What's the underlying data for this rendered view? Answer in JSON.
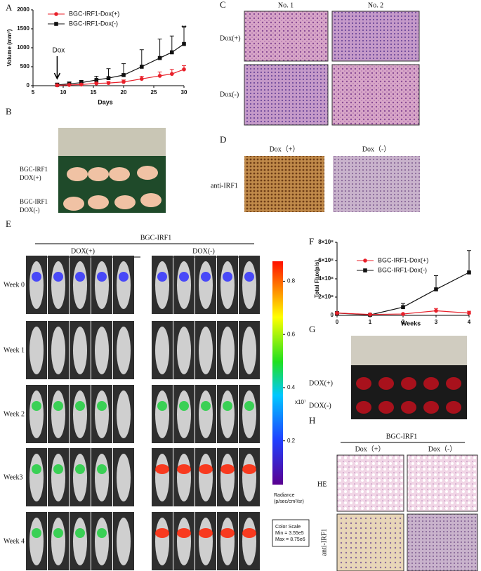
{
  "chart_data": [
    {
      "type": "line",
      "x_label": "Days",
      "y_label": "Volume (mm³)",
      "x": [
        9,
        11,
        13,
        15.5,
        17.5,
        20,
        23,
        26,
        28,
        30
      ],
      "series": [
        {
          "name": "BGC-IRF1-Dox(+)",
          "color": "#e8202a",
          "marker": "circle",
          "values": [
            10,
            20,
            30,
            60,
            70,
            100,
            180,
            260,
            310,
            430
          ],
          "errors": [
            20,
            20,
            20,
            30,
            40,
            50,
            70,
            100,
            120,
            100
          ]
        },
        {
          "name": "BGC-IRF1-Dox(-)",
          "color": "#111111",
          "marker": "square",
          "values": [
            20,
            50,
            80,
            150,
            200,
            280,
            500,
            730,
            880,
            1100
          ],
          "errors": [
            50,
            50,
            60,
            100,
            250,
            300,
            450,
            500,
            430,
            450
          ]
        }
      ],
      "xlim": [
        5,
        30
      ],
      "xticks": [
        5,
        10,
        15,
        20,
        25,
        30
      ],
      "ylim": [
        0,
        2000
      ],
      "yticks": [
        0,
        500,
        1000,
        1500,
        2000
      ],
      "annotations": [
        "Dox",
        "**"
      ],
      "legend": "upper left"
    },
    {
      "type": "line",
      "x_label": "Weeks",
      "y_label": "Total Flux(p/s)",
      "x": [
        0,
        1,
        2,
        3,
        4
      ],
      "series": [
        {
          "name": "BGC-IRF1-Dox(+)",
          "color": "#e8202a",
          "marker": "circle",
          "values": [
            25000000,
            10000000,
            15000000,
            50000000,
            25000000
          ],
          "errors": [
            0,
            0,
            0,
            25000000,
            20000000
          ]
        },
        {
          "name": "BGC-IRF1-Dox(-)",
          "color": "#111111",
          "marker": "square",
          "values": [
            25000000,
            5000000,
            90000000,
            285000000,
            470000000
          ],
          "errors": [
            0,
            0,
            40000000,
            150000000,
            240000000
          ]
        }
      ],
      "xlim": [
        0,
        4
      ],
      "xticks": [
        0,
        1,
        2,
        3,
        4
      ],
      "ylim": [
        0,
        800000000
      ],
      "yticks": [
        0,
        {
          "value": 200000000,
          "label": "2×10⁸"
        },
        {
          "value": 400000000,
          "label": "4×10⁸"
        },
        {
          "value": 600000000,
          "label": "6×10⁸"
        },
        {
          "value": 800000000,
          "label": "8×10⁸"
        }
      ],
      "legend": "upper left"
    }
  ],
  "panels": [
    "A",
    "B",
    "C",
    "D",
    "E",
    "F",
    "G",
    "H"
  ],
  "panel_b": {
    "rows": [
      [
        "BGC-IRF1",
        "DOX(+)"
      ],
      [
        "BGC-IRF1",
        "DOX(-)"
      ]
    ]
  },
  "panel_c": {
    "columns": [
      "No. 1",
      "No. 2"
    ],
    "rows": [
      "Dox(+)",
      "Dox(-)"
    ]
  },
  "panel_d": {
    "columns": [
      "Dox（+）",
      "Dox（-）"
    ],
    "row": "anti-IRF1"
  },
  "panel_e": {
    "title": "BGC-IRF1",
    "groups": [
      "DOX(+)",
      "DOX(-)"
    ],
    "rows": [
      "Week 0",
      "Week 1",
      "Week 2",
      "Week3",
      "Week 4"
    ],
    "colorbar": {
      "lim": [
        0.0355,
        0.875
      ],
      "ticks": [
        0.2,
        0.4,
        0.6,
        0.8
      ],
      "unit": "x10⁷",
      "label": [
        "Radiance",
        "(p/sec/cm²/sr)"
      ]
    },
    "scale_box": [
      "Color Scale",
      "Min = 3.55e5",
      "Max = 8.75e6"
    ]
  },
  "panel_g": {
    "rows": [
      "DOX(+)",
      "DOX(-)"
    ]
  },
  "panel_h": {
    "title": "BGC-IRF1",
    "columns": [
      "Dox（+）",
      "Dox（-）"
    ],
    "rows": [
      "HE",
      "anti-IRF1"
    ]
  }
}
